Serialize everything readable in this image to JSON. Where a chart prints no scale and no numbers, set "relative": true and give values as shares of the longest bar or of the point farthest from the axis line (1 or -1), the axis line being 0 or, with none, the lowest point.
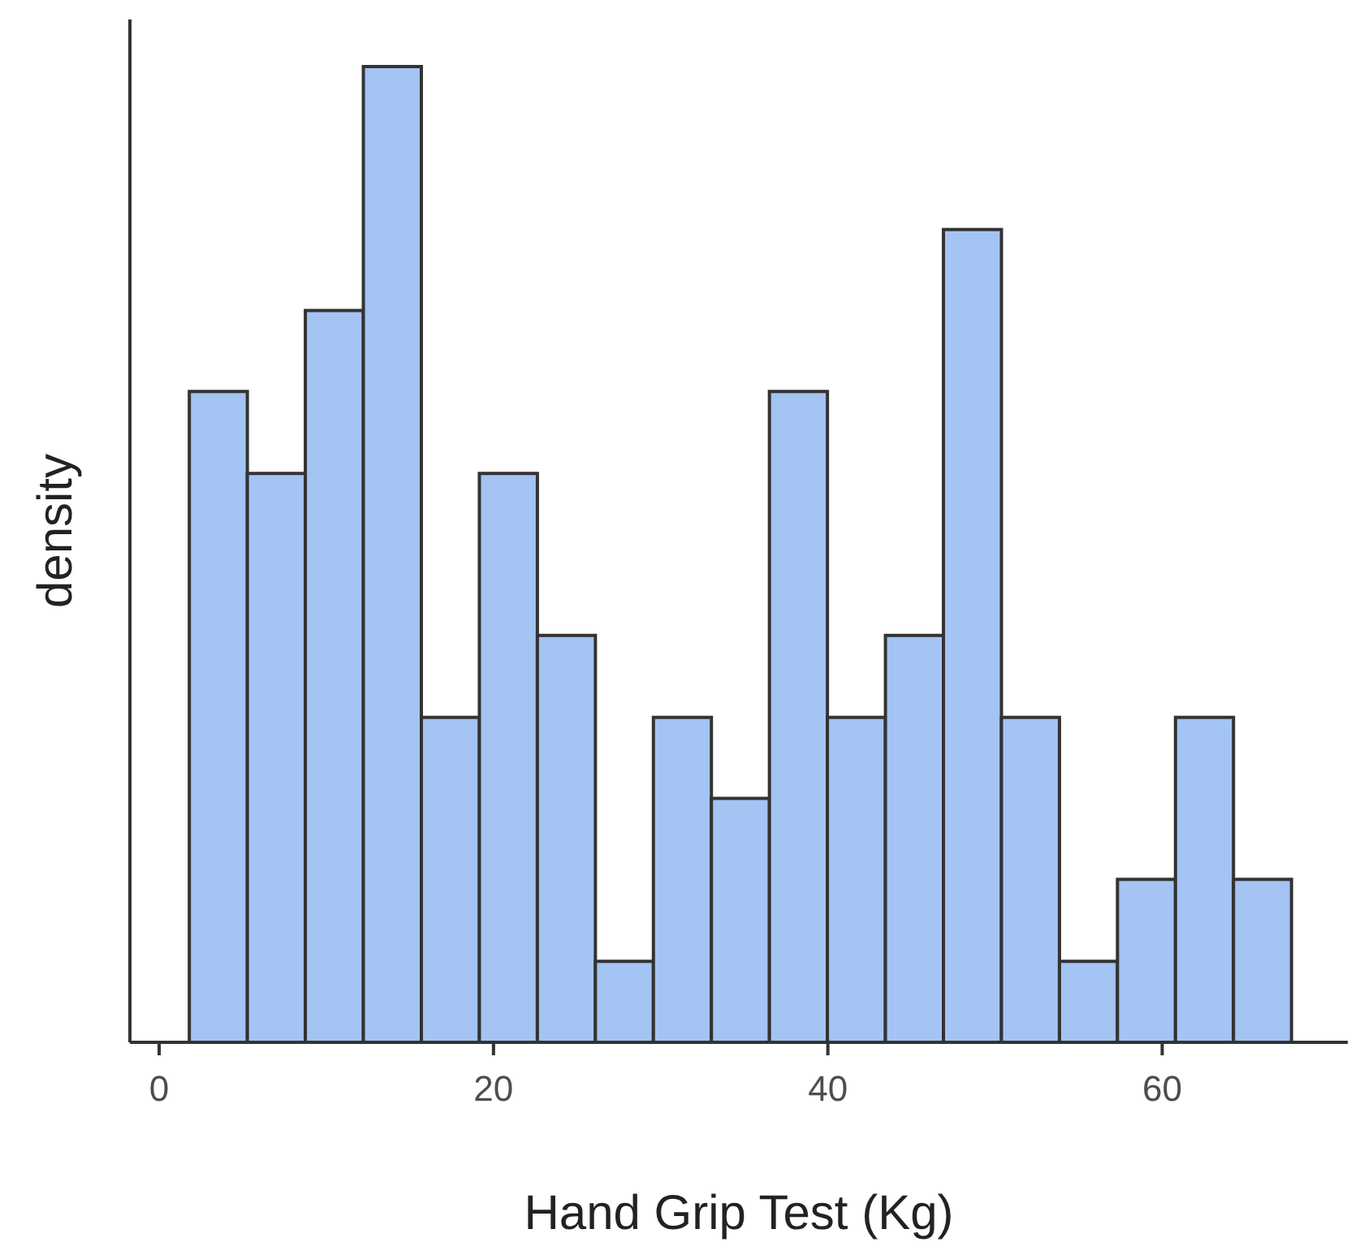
{
  "chart_data": {
    "type": "bar",
    "xlabel": "Hand Grip Test (Kg)",
    "ylabel": "density",
    "relative": true,
    "x": [
      3.54,
      7.01,
      10.48,
      13.95,
      17.42,
      20.89,
      24.36,
      27.83,
      31.3,
      34.77,
      38.24,
      41.71,
      45.18,
      48.65,
      52.12,
      55.59,
      59.06,
      62.53,
      66.0
    ],
    "values": [
      0.667,
      0.583,
      0.75,
      1,
      0.333,
      0.583,
      0.417,
      0.083,
      0.333,
      0.25,
      0.667,
      0.333,
      0.417,
      0.833,
      0.333,
      0.083,
      0.167,
      0.333,
      0.167
    ],
    "color": "#a4c4f4",
    "xlim": [
      -1.75,
      71.1
    ],
    "xticks": [
      0,
      20,
      40,
      60
    ]
  }
}
